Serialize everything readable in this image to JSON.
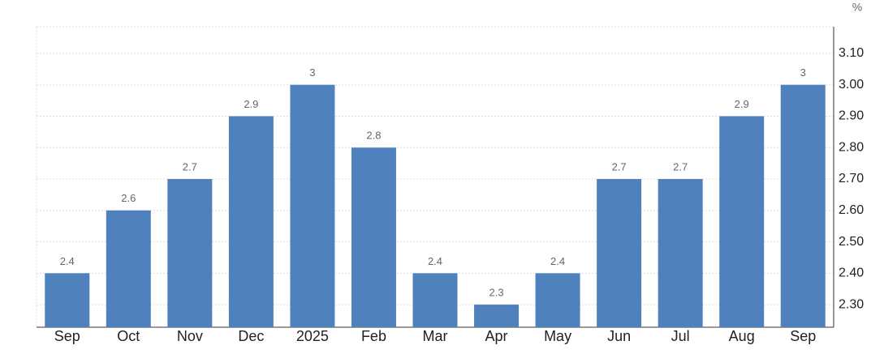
{
  "chart_data": {
    "type": "bar",
    "unit": "%",
    "categories": [
      "Sep",
      "Oct",
      "Nov",
      "Dec",
      "2025",
      "Feb",
      "Mar",
      "Apr",
      "May",
      "Jun",
      "Jul",
      "Aug",
      "Sep"
    ],
    "values": [
      2.4,
      2.6,
      2.7,
      2.9,
      3,
      2.8,
      2.4,
      2.3,
      2.4,
      2.7,
      2.7,
      2.9,
      3
    ],
    "color": "#4f81bd",
    "ylim": [
      2.228,
      3.185
    ],
    "yticks": [
      {
        "value": 2.3,
        "label": "2.30"
      },
      {
        "value": 2.4,
        "label": "2.40"
      },
      {
        "value": 2.5,
        "label": "2.50"
      },
      {
        "value": 2.6,
        "label": "2.60"
      },
      {
        "value": 2.7,
        "label": "2.70"
      },
      {
        "value": 2.8,
        "label": "2.80"
      },
      {
        "value": 2.9,
        "label": "2.90"
      },
      {
        "value": 3.0,
        "label": "3.00"
      },
      {
        "value": 3.1,
        "label": "3.10"
      }
    ],
    "grid": true
  }
}
